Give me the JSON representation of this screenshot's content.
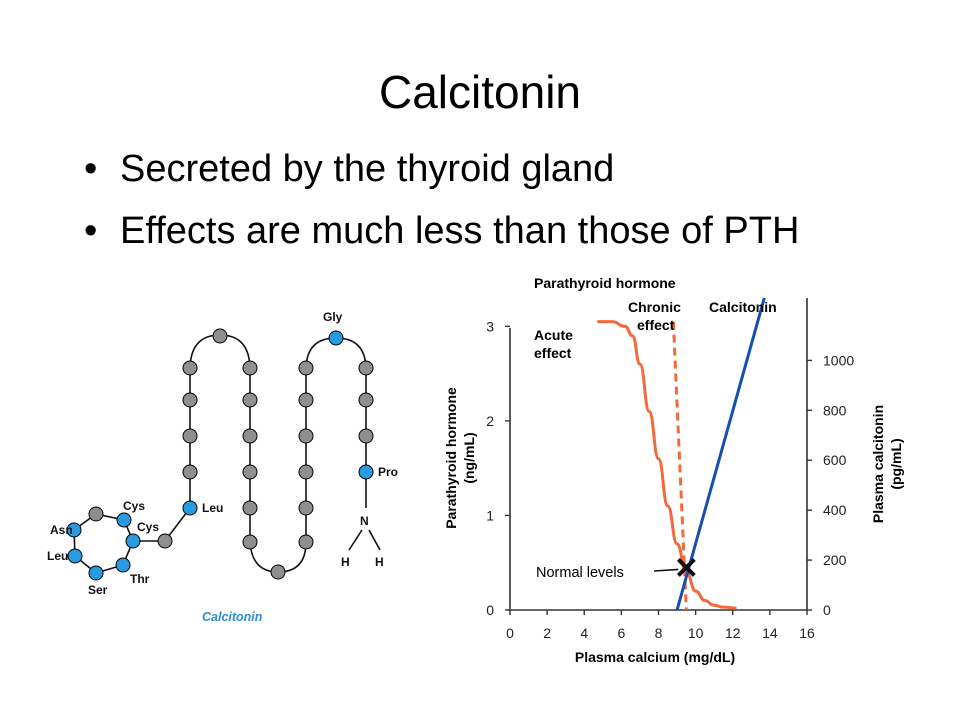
{
  "slide": {
    "title": "Calcitonin",
    "bullets": [
      "Secreted by the thyroid gland",
      "Effects are much less than those of PTH"
    ]
  },
  "molecule": {
    "caption": "Calcitonin",
    "labels": {
      "asn": "Asn",
      "leu_ring": "Leu",
      "ser": "Ser",
      "thr": "Thr",
      "cys_top": "Cys",
      "cys_inner": "Cys",
      "leu": "Leu",
      "gly": "Gly",
      "pro": "Pro",
      "n": "N",
      "h_left": "H",
      "h_right": "H"
    },
    "colors": {
      "highlighted": "#2a9be0",
      "residue": "#8f8f8f",
      "caption": "#2a8fd0"
    }
  },
  "chart_data": {
    "type": "line",
    "title": "Parathyroid hormone",
    "xlabel": "Plasma calcium (mg/dL)",
    "ylabel": "Parathyroid hormone (ng/mL)",
    "y2label": "Plasma calcitonin (pg/mL)",
    "xlim": [
      0,
      16
    ],
    "ylim": [
      0,
      3.3
    ],
    "y2lim": [
      0,
      1250
    ],
    "xticks": [
      0,
      2,
      4,
      6,
      8,
      10,
      12,
      14,
      16
    ],
    "yticks": [
      0,
      1,
      2,
      3
    ],
    "y2ticks": [
      0,
      200,
      400,
      600,
      800,
      1000
    ],
    "series": [
      {
        "name": "Acute effect",
        "axis": "left",
        "style": "solid",
        "color": "#f26a3c",
        "x": [
          4.7,
          5.5,
          6.2,
          6.6,
          7.0,
          7.5,
          8.0,
          8.5,
          9.0,
          9.5,
          10.0,
          10.5,
          11.0,
          11.5,
          12.2
        ],
        "y": [
          3.05,
          3.05,
          3.0,
          2.9,
          2.6,
          2.1,
          1.6,
          1.1,
          0.7,
          0.4,
          0.2,
          0.1,
          0.05,
          0.03,
          0.02
        ]
      },
      {
        "name": "Chronic effect",
        "axis": "left",
        "style": "dashed",
        "color": "#f26a3c",
        "x": [
          8.8,
          9.5
        ],
        "y": [
          3.05,
          0.0
        ]
      },
      {
        "name": "Calcitonin",
        "axis": "right",
        "style": "solid",
        "color": "#1550b0",
        "x": [
          9.0,
          13.7
        ],
        "y": [
          0,
          1250
        ]
      }
    ],
    "annotations": [
      {
        "text": "Normal levels",
        "x": 9.5,
        "y": 0.45
      }
    ]
  }
}
